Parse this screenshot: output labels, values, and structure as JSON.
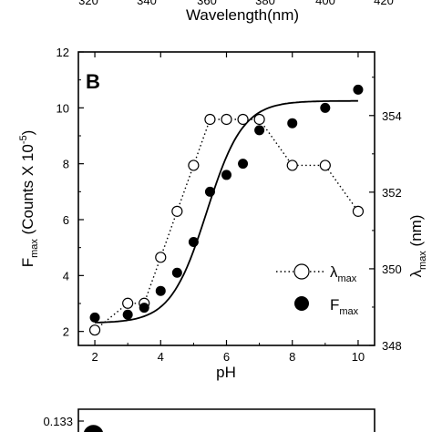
{
  "top_strip": {
    "ticks": [
      "320",
      "340",
      "360",
      "380",
      "400",
      "420"
    ],
    "xlabel": "Wavelength(nm)"
  },
  "chart_data": {
    "type": "scatter",
    "panel_label": "B",
    "xlabel": "pH",
    "ylabel_left_main": "F",
    "ylabel_left_sub": "max",
    "ylabel_left_rest": " (Counts X 10",
    "ylabel_left_sup": "-5",
    "ylabel_left_close": ")",
    "ylabel_right_main": "λ",
    "ylabel_right_sub": "max",
    "ylabel_right_rest": " (nm)",
    "xlim": [
      1.5,
      10.5
    ],
    "ylim_left": [
      1.5,
      12
    ],
    "ylim_right": [
      348,
      355.66
    ],
    "x_ticks": [
      2,
      4,
      6,
      8,
      10
    ],
    "y_left_ticks": [
      2,
      4,
      6,
      8,
      10,
      12
    ],
    "y_right_ticks": [
      348,
      350,
      352,
      354
    ],
    "series": [
      {
        "name_main": "λ",
        "name_sub": "max",
        "axis": "right",
        "marker": "open-circle",
        "line": "dotted",
        "x": [
          2,
          3,
          3.5,
          4,
          4.5,
          5,
          5.5,
          6,
          6.5,
          7,
          8,
          9,
          10
        ],
        "y": [
          348.4,
          349.1,
          349.1,
          350.3,
          351.5,
          352.7,
          353.9,
          353.9,
          353.9,
          353.9,
          352.7,
          352.7,
          351.5
        ]
      },
      {
        "name_main": "F",
        "name_sub": "max",
        "axis": "left",
        "marker": "filled-circle",
        "line": "sigmoid-fit",
        "x": [
          2,
          3,
          3.5,
          4,
          4.5,
          5,
          5.5,
          6,
          6.5,
          7,
          8,
          9,
          10
        ],
        "y": [
          2.5,
          2.6,
          2.85,
          3.45,
          4.1,
          5.2,
          7.0,
          7.6,
          8.0,
          9.2,
          9.45,
          10.0,
          10.65
        ],
        "fit": {
          "bottom": 2.3,
          "top": 10.25,
          "x0": 5.4,
          "slope": 0.55
        }
      }
    ]
  },
  "bottom_strip": {
    "y_tick": "0.133"
  }
}
